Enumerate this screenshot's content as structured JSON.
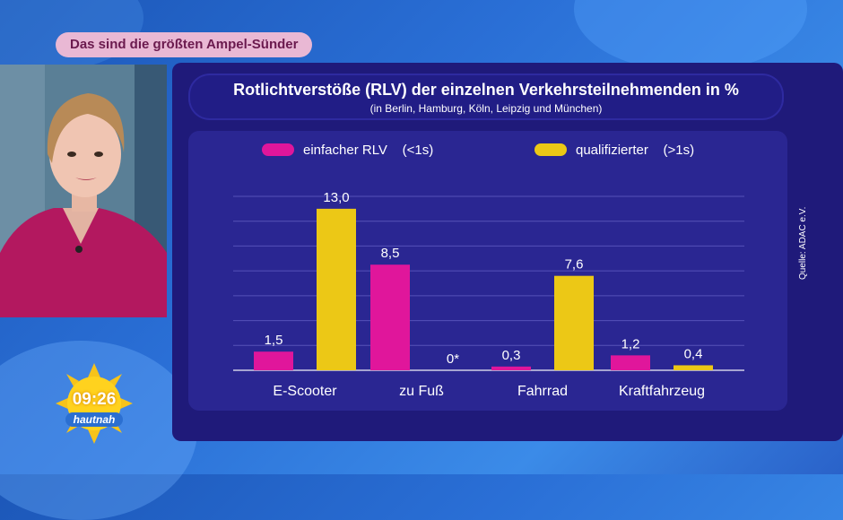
{
  "banner": "Das sind die größten Ampel-Sünder",
  "source": "Quelle: ADAC e.V.",
  "clock": {
    "time": "09:26",
    "show": "hautnah"
  },
  "chart_data": {
    "type": "bar",
    "title": "Rotlichtverstöße (RLV) der einzelnen Verkehrsteilnehmenden in %",
    "subtitle": "(in Berlin, Hamburg, Köln, Leipzig und München)",
    "categories": [
      "E-Scooter",
      "zu Fuß",
      "Fahrrad",
      "Kraftfahrzeug"
    ],
    "series": [
      {
        "name": "einfacher RLV    (<1s)",
        "values": [
          1.5,
          8.5,
          0.3,
          1.2
        ],
        "labels": [
          "1,5",
          "8,5",
          "0,3",
          "1,2"
        ],
        "color": "#e0169b"
      },
      {
        "name": "qualifizierter    (>1s)",
        "values": [
          13.0,
          0,
          7.6,
          0.4
        ],
        "labels": [
          "13,0",
          "0*",
          "7,6",
          "0,4"
        ],
        "color": "#ecc816"
      }
    ],
    "ylim": [
      0,
      14
    ],
    "grid": true,
    "legend": "top"
  }
}
